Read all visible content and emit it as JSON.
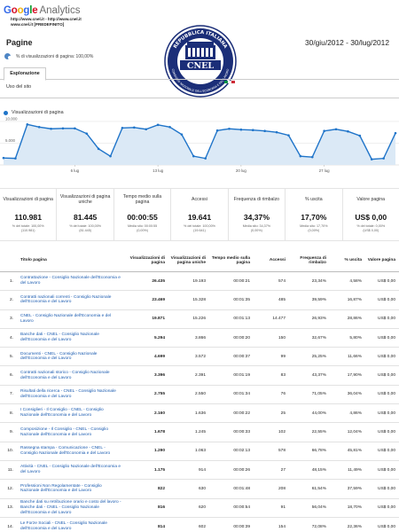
{
  "header": {
    "logo_google": [
      "G",
      "o",
      "o",
      "g",
      "l",
      "e"
    ],
    "logo_colors": [
      "#3369e8",
      "#d50f25",
      "#eeb211",
      "#3369e8",
      "#009925",
      "#d50f25"
    ],
    "logo_analytics": "Analytics",
    "url_line": "http://www.cnel.it - http://www.cnel.it",
    "profile_line": "www.cnel.it [PREDEFINITO]",
    "page_title": "Pagine",
    "segment_text": "% di visualizzazioni di pagina: 100,00%",
    "date_range": "30/giu/2012 - 30/lug/2012"
  },
  "seal": {
    "top_text": "REPUBBLICA ITALIANA",
    "name": "CNEL",
    "bottom_text": "CONSIGLIO NAZIONALE DELL'ECONOMIA E DEL LAVORO"
  },
  "tabs": {
    "active": "Esplorazione"
  },
  "section_label": "Uso del sito",
  "chart": {
    "legend": "Visualizzazioni di pagina"
  },
  "chart_data": {
    "type": "area",
    "series": [
      {
        "name": "Visualizzazioni di pagina",
        "values": [
          1600,
          1500,
          9300,
          8700,
          8300,
          8400,
          8400,
          7200,
          3700,
          2000,
          8500,
          8600,
          8200,
          9200,
          8700,
          7000,
          2000,
          1500,
          7900,
          8300,
          8100,
          8000,
          7800,
          7500,
          6800,
          2000,
          1800,
          7800,
          8200,
          7700,
          6700,
          1300,
          1500,
          7300
        ]
      }
    ],
    "yticks": [
      "5.000",
      "10.000"
    ],
    "ylim": [
      0,
      11000
    ],
    "xticks": [
      {
        "label": "6 lug",
        "index": 6
      },
      {
        "label": "13 lug",
        "index": 13
      },
      {
        "label": "20 lug",
        "index": 20
      },
      {
        "label": "27 lug",
        "index": 27
      }
    ],
    "grid": true,
    "color": "#1f74c9",
    "fill": "#dbe9f6"
  },
  "kpis": [
    {
      "title": "Visualizzazioni di pagina",
      "value": "110.981",
      "sub1": "% del totale: 100,00%",
      "sub2": "(110.981)"
    },
    {
      "title": "Visualizzazioni di pagina uniche",
      "value": "81.445",
      "sub1": "% del totale: 100,00%",
      "sub2": "(81.445)"
    },
    {
      "title": "Tempo medio sulla pagina",
      "value": "00:00:55",
      "sub1": "Media sito: 00:00:55",
      "sub2": "(0,00%)"
    },
    {
      "title": "Accessi",
      "value": "19.641",
      "sub1": "% del totale: 100,00%",
      "sub2": "(19.641)"
    },
    {
      "title": "Frequenza di rimbalzo",
      "value": "34,37%",
      "sub1": "Media sito: 34,37%",
      "sub2": "(0,00%)"
    },
    {
      "title": "% uscita",
      "value": "17,70%",
      "sub1": "Media sito: 17,70%",
      "sub2": "(0,00%)"
    },
    {
      "title": "Valore pagina",
      "value": "US$ 0,00",
      "sub1": "% del totale: 0,00%",
      "sub2": "(US$ 0,00)"
    }
  ],
  "table": {
    "headers": {
      "title": "Titolo pagina",
      "views": "Visualizzazioni di pagina",
      "unique": "Visualizzazioni di pagina uniche",
      "time": "Tempo medio sulla pagina",
      "entrances": "Accessi",
      "bounce": "Frequenza di rimbalzo",
      "exit": "% uscita",
      "value": "Valore pagina"
    },
    "rows": [
      {
        "n": "1.",
        "title": "Contrattazione - Consiglio Nazionale dell'Economia e del Lavoro",
        "views": "26.435",
        "unique": "19.193",
        "time": "00:00:21",
        "entrances": "574",
        "bounce": "23,34%",
        "exit": "4,58%",
        "value": "US$ 0,00"
      },
      {
        "n": "2.",
        "title": "Contratti nazionali correnti - Consiglio Nazionale dell'Economia e del Lavoro",
        "views": "23.469",
        "unique": "15.328",
        "time": "00:01:35",
        "entrances": "485",
        "bounce": "39,59%",
        "exit": "16,87%",
        "value": "US$ 0,00"
      },
      {
        "n": "3.",
        "title": "CNEL - Consiglio Nazionale dell'Economia e del Lavoro",
        "views": "19.871",
        "unique": "15.226",
        "time": "00:01:13",
        "entrances": "14.477",
        "bounce": "26,93%",
        "exit": "28,86%",
        "value": "US$ 0,00"
      },
      {
        "n": "4.",
        "title": "Banche dati - CNEL - Consiglio Nazionale dell'Economia e del Lavoro",
        "views": "5.294",
        "unique": "3.866",
        "time": "00:00:20",
        "entrances": "150",
        "bounce": "32,67%",
        "exit": "5,80%",
        "value": "US$ 0,00"
      },
      {
        "n": "5.",
        "title": "Documenti - CNEL - Consiglio Nazionale dell'Economia e del Lavoro",
        "views": "4.699",
        "unique": "3.572",
        "time": "00:00:37",
        "entrances": "99",
        "bounce": "25,25%",
        "exit": "11,66%",
        "value": "US$ 0,00"
      },
      {
        "n": "6.",
        "title": "Contratti nazionali storico - Consiglio Nazionale dell'Economia e del Lavoro",
        "views": "3.396",
        "unique": "2.391",
        "time": "00:01:19",
        "entrances": "83",
        "bounce": "43,37%",
        "exit": "17,90%",
        "value": "US$ 0,00"
      },
      {
        "n": "7.",
        "title": "Risultati della ricerca - CNEL - Consiglio Nazionale dell'Economia e del Lavoro",
        "views": "2.755",
        "unique": "2.550",
        "time": "00:01:34",
        "entrances": "76",
        "bounce": "71,05%",
        "exit": "36,04%",
        "value": "US$ 0,00"
      },
      {
        "n": "8.",
        "title": "I Consiglieri - Il Consiglio - CNEL - Consiglio Nazionale dell'Economia e del Lavoro",
        "views": "2.160",
        "unique": "1.636",
        "time": "00:00:22",
        "entrances": "25",
        "bounce": "44,00%",
        "exit": "4,86%",
        "value": "US$ 0,00"
      },
      {
        "n": "9.",
        "title": "Composizione - Il Consiglio - CNEL - Consiglio Nazionale dell'Economia e del Lavoro",
        "views": "1.678",
        "unique": "1.245",
        "time": "00:00:33",
        "entrances": "102",
        "bounce": "22,55%",
        "exit": "12,04%",
        "value": "US$ 0,00"
      },
      {
        "n": "10.",
        "title": "Rassegna stampa - Comunicazione - CNEL - Consiglio Nazionale dell'Economia e del Lavoro",
        "views": "1.290",
        "unique": "1.063",
        "time": "00:02:13",
        "entrances": "578",
        "bounce": "66,78%",
        "exit": "45,81%",
        "value": "US$ 0,00"
      },
      {
        "n": "11.",
        "title": "Attività - CNEL - Consiglio Nazionale dell'Economia e del Lavoro",
        "views": "1.175",
        "unique": "914",
        "time": "00:00:26",
        "entrances": "27",
        "bounce": "48,15%",
        "exit": "11,49%",
        "value": "US$ 0,00"
      },
      {
        "n": "12.",
        "title": "Professioni Non Regolamentate - Consiglio Nazionale dell'Economia e del Lavoro",
        "views": "822",
        "unique": "630",
        "time": "00:01:48",
        "entrances": "208",
        "bounce": "61,54%",
        "exit": "37,59%",
        "value": "US$ 0,00"
      },
      {
        "n": "13.",
        "title": "Banche dati su retribuzione orario e costo del lavoro - Banche dati - CNEL - Consiglio Nazionale dell'Economia e del Lavoro",
        "views": "816",
        "unique": "620",
        "time": "00:00:54",
        "entrances": "91",
        "bounce": "56,04%",
        "exit": "18,70%",
        "value": "US$ 0,00"
      },
      {
        "n": "14.",
        "title": "Le Forze Sociali - CNEL - Consiglio Nazionale dell'Economia e del Lavoro",
        "views": "814",
        "unique": "602",
        "time": "00:00:39",
        "entrances": "154",
        "bounce": "72,08%",
        "exit": "22,36%",
        "value": "US$ 0,00"
      }
    ]
  }
}
